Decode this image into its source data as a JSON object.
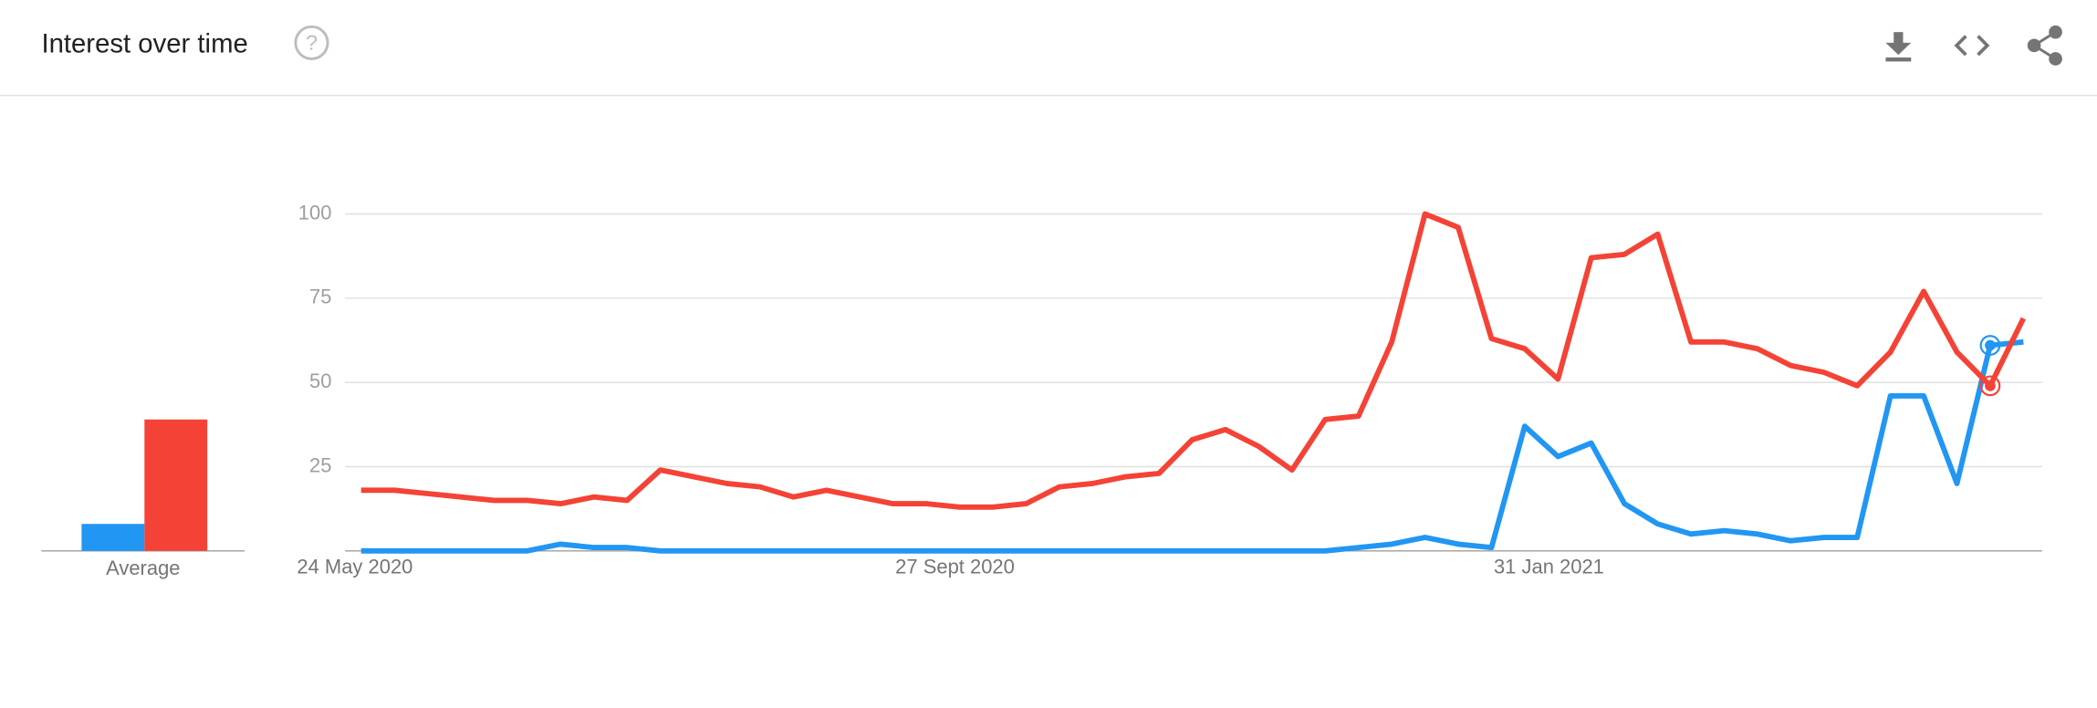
{
  "chart_data": {
    "type": "line",
    "title": "Interest over time",
    "categories": [
      "24 May 2020",
      null,
      null,
      null,
      null,
      null,
      null,
      null,
      null,
      null,
      null,
      null,
      null,
      null,
      null,
      null,
      null,
      null,
      "27 Sept 2020",
      null,
      null,
      null,
      null,
      null,
      null,
      null,
      null,
      null,
      null,
      null,
      null,
      null,
      null,
      null,
      null,
      null,
      "31 Jan 2021",
      null,
      null,
      null,
      null,
      null,
      null,
      null,
      null,
      null,
      null,
      null,
      null,
      null,
      null
    ],
    "series": [
      {
        "color": "#2196f3",
        "values": [
          0,
          0,
          0,
          0,
          0,
          0,
          2,
          1,
          1,
          0,
          0,
          0,
          0,
          0,
          0,
          0,
          0,
          0,
          0,
          0,
          0,
          0,
          0,
          0,
          0,
          0,
          0,
          0,
          0,
          0,
          1,
          2,
          4,
          2,
          1,
          37,
          28,
          32,
          14,
          8,
          5,
          6,
          5,
          3,
          4,
          4,
          46,
          46,
          20,
          61,
          62
        ]
      },
      {
        "color": "#f44336",
        "values": [
          18,
          18,
          17,
          16,
          15,
          15,
          14,
          16,
          15,
          24,
          22,
          20,
          19,
          16,
          18,
          16,
          14,
          14,
          13,
          13,
          14,
          19,
          20,
          22,
          23,
          33,
          36,
          31,
          24,
          39,
          40,
          62,
          100,
          96,
          63,
          60,
          51,
          87,
          88,
          94,
          62,
          62,
          60,
          55,
          53,
          49,
          59,
          77,
          59,
          49,
          69
        ]
      }
    ],
    "ylim": [
      0,
      100
    ],
    "yticks": [
      25,
      50,
      75,
      100
    ],
    "grid": true,
    "average": {
      "label": "Average",
      "values": [
        8,
        39
      ]
    }
  }
}
